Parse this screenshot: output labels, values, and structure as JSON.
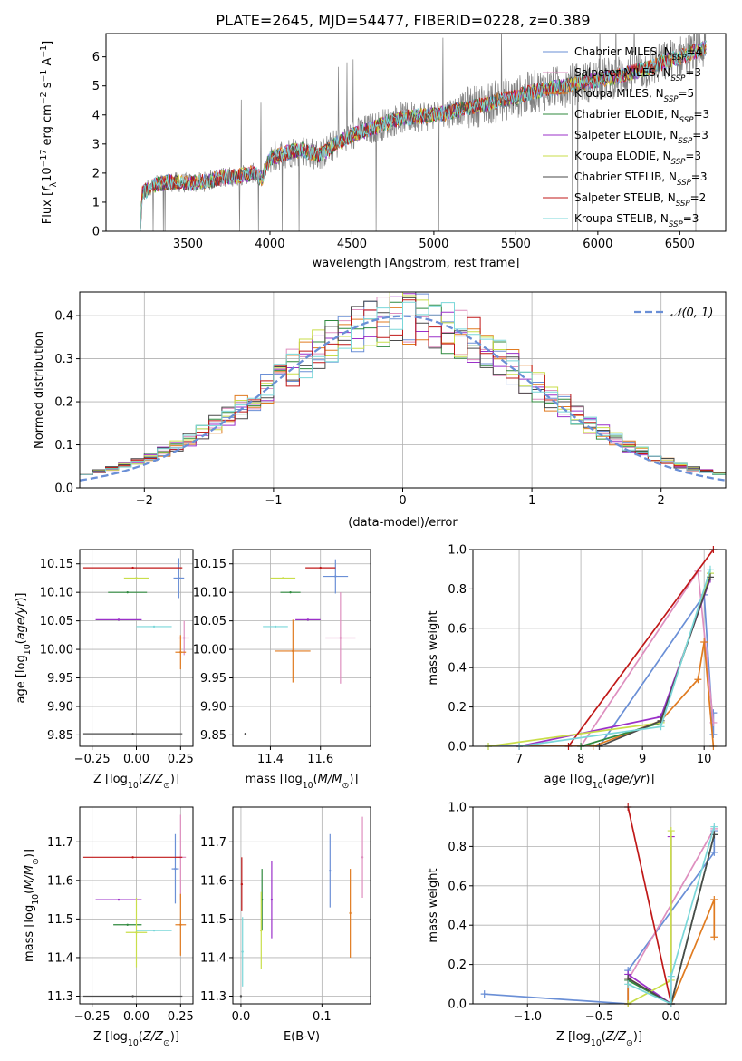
{
  "title": "PLATE=2645, MJD=54477, FIBERID=0228, z=0.389",
  "colors": {
    "Chabrier MILES": "#6a8fd6",
    "Salpeter MILES": "#de8fbf",
    "Kroupa MILES": "#e07b20",
    "Chabrier ELODIE": "#2f8a3e",
    "Salpeter ELODIE": "#9b30c9",
    "Kroupa ELODIE": "#c9de4a",
    "Chabrier STELIB": "#4a4a4a",
    "Salpeter STELIB": "#c01818",
    "Kroupa STELIB": "#7ad7d9",
    "data": "#808080",
    "normal": "#6a8fd6"
  },
  "chart_data": [
    {
      "id": "spectrum",
      "type": "line",
      "title": "PLATE=2645, MJD=54477, FIBERID=0228, z=0.389",
      "xlabel": "wavelength [Angstrom, rest frame]",
      "ylabel": "Flux [f_λ 10^-17 erg cm^-2 s^-1 A^-1]",
      "xlim": [
        3000,
        6780
      ],
      "ylim": [
        0,
        6.8
      ],
      "xticks": [
        3500,
        4000,
        4500,
        5000,
        5500,
        6000,
        6500
      ],
      "yticks": [
        0,
        1,
        2,
        3,
        4,
        5,
        6
      ],
      "legend": "right",
      "legend_entries": [
        {
          "label": "Chabrier MILES, N",
          "sub": "SSP",
          "tail": "=4",
          "model": "Chabrier MILES"
        },
        {
          "label": "Salpeter MILES, N",
          "sub": "SSP",
          "tail": "=3",
          "model": "Salpeter MILES"
        },
        {
          "label": "Kroupa MILES, N",
          "sub": "SSP",
          "tail": "=5",
          "model": "Kroupa MILES"
        },
        {
          "label": "Chabrier ELODIE, N",
          "sub": "SSP",
          "tail": "=3",
          "model": "Chabrier ELODIE"
        },
        {
          "label": "Salpeter ELODIE, N",
          "sub": "SSP",
          "tail": "=3",
          "model": "Salpeter ELODIE"
        },
        {
          "label": "Kroupa ELODIE, N",
          "sub": "SSP",
          "tail": "=3",
          "model": "Kroupa ELODIE"
        },
        {
          "label": "Chabrier STELIB, N",
          "sub": "SSP",
          "tail": "=3",
          "model": "Chabrier STELIB"
        },
        {
          "label": "Salpeter STELIB, N",
          "sub": "SSP",
          "tail": "=2",
          "model": "Salpeter STELIB"
        },
        {
          "label": "Kroupa STELIB, N",
          "sub": "SSP",
          "tail": "=3",
          "model": "Kroupa STELIB"
        }
      ],
      "model_shape": [
        [
          3210,
          0
        ],
        [
          3220,
          1.3
        ],
        [
          3300,
          1.6
        ],
        [
          3400,
          1.7
        ],
        [
          3500,
          1.65
        ],
        [
          3600,
          1.7
        ],
        [
          3700,
          1.85
        ],
        [
          3800,
          1.9
        ],
        [
          3900,
          2.0
        ],
        [
          3950,
          1.8
        ],
        [
          4000,
          2.5
        ],
        [
          4100,
          2.7
        ],
        [
          4200,
          2.8
        ],
        [
          4300,
          2.6
        ],
        [
          4400,
          3.0
        ],
        [
          4500,
          3.3
        ],
        [
          4600,
          3.5
        ],
        [
          4700,
          3.7
        ],
        [
          4800,
          3.9
        ],
        [
          4900,
          3.95
        ],
        [
          5000,
          4.0
        ],
        [
          5100,
          4.1
        ],
        [
          5200,
          4.25
        ],
        [
          5300,
          4.35
        ],
        [
          5400,
          4.5
        ],
        [
          5500,
          4.6
        ],
        [
          5600,
          4.8
        ],
        [
          5700,
          4.9
        ],
        [
          5800,
          5.0
        ],
        [
          5900,
          5.1
        ],
        [
          6000,
          5.2
        ],
        [
          6100,
          5.3
        ],
        [
          6200,
          5.45
        ],
        [
          6300,
          5.6
        ],
        [
          6400,
          5.8
        ],
        [
          6500,
          6.0
        ],
        [
          6600,
          6.2
        ],
        [
          6650,
          6.3
        ]
      ]
    },
    {
      "id": "residuals",
      "type": "line",
      "xlabel": "(data-model)/error",
      "ylabel": "Normed distribution",
      "xlim": [
        -2.5,
        2.5
      ],
      "ylim": [
        0,
        0.455
      ],
      "xticks": [
        -2,
        -1,
        0,
        1,
        2
      ],
      "yticks": [
        0.0,
        0.1,
        0.2,
        0.3,
        0.4
      ],
      "bin_edges_range": [
        -2.5,
        2.5
      ],
      "n_bins": 50,
      "normal_label": "𝒩(0, 1)",
      "legend": "top-right"
    },
    {
      "id": "age-Z",
      "type": "scatter",
      "xlabel": "Z [log10(Z/Z⊙)]",
      "ylabel": "age  [log10(age/yr)]",
      "xlim": [
        -0.32,
        0.32
      ],
      "ylim": [
        9.83,
        10.175
      ],
      "xticks": [
        -0.25,
        0.0,
        0.25
      ],
      "yticks": [
        9.85,
        9.9,
        9.95,
        10.0,
        10.05,
        10.1,
        10.15
      ],
      "points": [
        {
          "model": "Chabrier MILES",
          "x": 0.24,
          "y": 10.125,
          "xerr": 0.03,
          "yerr": 0.035
        },
        {
          "model": "Salpeter MILES",
          "x": 0.27,
          "y": 10.02,
          "xerr": 0.03,
          "yerr": 0.03
        },
        {
          "model": "Kroupa MILES",
          "x": 0.25,
          "y": 9.995,
          "xerr": 0.03,
          "yerr": 0.03
        },
        {
          "model": "Chabrier ELODIE",
          "x": -0.05,
          "y": 10.1,
          "xerr": 0.11,
          "yerr": 0.0
        },
        {
          "model": "Salpeter ELODIE",
          "x": -0.1,
          "y": 10.052,
          "xerr": 0.13,
          "yerr": 0.0
        },
        {
          "model": "Kroupa ELODIE",
          "x": 0.0,
          "y": 10.125,
          "xerr": 0.07,
          "yerr": 0.0
        },
        {
          "model": "Chabrier STELIB",
          "x": -0.02,
          "y": 9.852,
          "xerr": 0.28,
          "yerr": 0.0
        },
        {
          "model": "Salpeter STELIB",
          "x": -0.02,
          "y": 10.143,
          "xerr": 0.28,
          "yerr": 0.0
        },
        {
          "model": "Kroupa STELIB",
          "x": 0.1,
          "y": 10.04,
          "xerr": 0.1,
          "yerr": 0.0
        }
      ]
    },
    {
      "id": "age-mass",
      "type": "scatter",
      "xlabel": "mass [log10(M/M⊙)]",
      "xlim": [
        11.25,
        11.8
      ],
      "ylim": [
        9.83,
        10.175
      ],
      "xticks": [
        11.4,
        11.6
      ],
      "yticks": [
        9.85,
        9.9,
        9.95,
        10.0,
        10.05,
        10.1,
        10.15
      ],
      "points": [
        {
          "model": "Chabrier MILES",
          "x": 11.66,
          "y": 10.128,
          "xerr": 0.05,
          "yerr": 0.03
        },
        {
          "model": "Salpeter MILES",
          "x": 11.68,
          "y": 10.02,
          "xerr": 0.06,
          "yerr": 0.08
        },
        {
          "model": "Kroupa MILES",
          "x": 11.49,
          "y": 9.997,
          "xerr": 0.07,
          "yerr": 0.055
        },
        {
          "model": "Chabrier ELODIE",
          "x": 11.48,
          "y": 10.1,
          "xerr": 0.04,
          "yerr": 0.0
        },
        {
          "model": "Salpeter ELODIE",
          "x": 11.55,
          "y": 10.052,
          "xerr": 0.05,
          "yerr": 0.0
        },
        {
          "model": "Kroupa ELODIE",
          "x": 11.45,
          "y": 10.125,
          "xerr": 0.05,
          "yerr": 0.0
        },
        {
          "model": "Chabrier STELIB",
          "x": 11.3,
          "y": 9.852,
          "xerr": 0.0,
          "yerr": 0.0
        },
        {
          "model": "Salpeter STELIB",
          "x": 11.6,
          "y": 10.143,
          "xerr": 0.06,
          "yerr": 0.0
        },
        {
          "model": "Kroupa STELIB",
          "x": 11.42,
          "y": 10.04,
          "xerr": 0.05,
          "yerr": 0.0
        }
      ]
    },
    {
      "id": "weight-age",
      "type": "line",
      "xlabel": "age  [log10(age/yr)]",
      "ylabel": "mass weight",
      "xlim": [
        6.25,
        10.35
      ],
      "ylim": [
        0,
        1.0
      ],
      "xticks": [
        7,
        8,
        9,
        10
      ],
      "yticks": [
        0.0,
        0.2,
        0.4,
        0.6,
        0.8,
        1.0
      ],
      "series": [
        {
          "model": "Chabrier MILES",
          "points": [
            [
              6.5,
              0.0
            ],
            [
              8.3,
              0.0
            ],
            [
              10.0,
              0.77
            ],
            [
              10.15,
              0.06
            ],
            [
              10.15,
              0.17
            ]
          ]
        },
        {
          "model": "Salpeter MILES",
          "points": [
            [
              7.0,
              0.0
            ],
            [
              8.0,
              0.0
            ],
            [
              9.9,
              0.89
            ],
            [
              10.15,
              0.12
            ]
          ]
        },
        {
          "model": "Kroupa MILES",
          "points": [
            [
              7.0,
              0.0
            ],
            [
              8.2,
              0.0
            ],
            [
              9.3,
              0.13
            ],
            [
              9.9,
              0.34
            ],
            [
              10.0,
              0.53
            ],
            [
              10.15,
              0.0
            ]
          ]
        },
        {
          "model": "Chabrier ELODIE",
          "points": [
            [
              8.0,
              0.0
            ],
            [
              9.3,
              0.12
            ],
            [
              10.1,
              0.88
            ]
          ]
        },
        {
          "model": "Salpeter ELODIE",
          "points": [
            [
              7.0,
              0.0
            ],
            [
              9.3,
              0.15
            ],
            [
              10.1,
              0.85
            ]
          ]
        },
        {
          "model": "Kroupa ELODIE",
          "points": [
            [
              6.5,
              0.0
            ],
            [
              9.3,
              0.12
            ],
            [
              10.1,
              0.88
            ]
          ]
        },
        {
          "model": "Chabrier STELIB",
          "points": [
            [
              8.3,
              0.0
            ],
            [
              9.3,
              0.13
            ],
            [
              10.1,
              0.86
            ]
          ]
        },
        {
          "model": "Salpeter STELIB",
          "points": [
            [
              7.8,
              0.0
            ],
            [
              10.15,
              1.0
            ]
          ]
        },
        {
          "model": "Kroupa STELIB",
          "points": [
            [
              7.0,
              0.0
            ],
            [
              9.3,
              0.1
            ],
            [
              10.1,
              0.9
            ]
          ]
        }
      ]
    },
    {
      "id": "mass-Z",
      "type": "scatter",
      "xlabel": "Z [log10(Z/Z⊙)]",
      "ylabel": "mass [log10(M/M⊙)]",
      "xlim": [
        -0.32,
        0.32
      ],
      "ylim": [
        11.28,
        11.79
      ],
      "xticks": [
        -0.25,
        0.0,
        0.25
      ],
      "yticks": [
        11.3,
        11.4,
        11.5,
        11.6,
        11.7
      ],
      "points": [
        {
          "model": "Chabrier MILES",
          "x": 0.22,
          "y": 11.63,
          "xerr": 0.02,
          "yerr": 0.09
        },
        {
          "model": "Salpeter MILES",
          "x": 0.25,
          "y": 11.66,
          "xerr": 0.03,
          "yerr": 0.11
        },
        {
          "model": "Kroupa MILES",
          "x": 0.25,
          "y": 11.485,
          "xerr": 0.03,
          "yerr": 0.08
        },
        {
          "model": "Chabrier ELODIE",
          "x": -0.05,
          "y": 11.485,
          "xerr": 0.08,
          "yerr": 0.0
        },
        {
          "model": "Salpeter ELODIE",
          "x": -0.1,
          "y": 11.55,
          "xerr": 0.13,
          "yerr": 0.0
        },
        {
          "model": "Kroupa ELODIE",
          "x": 0.0,
          "y": 11.465,
          "xerr": 0.06,
          "yerr": 0.09
        },
        {
          "model": "Chabrier STELIB",
          "x": -0.02,
          "y": 11.3,
          "xerr": 0.28,
          "yerr": 0.0
        },
        {
          "model": "Salpeter STELIB",
          "x": -0.02,
          "y": 11.66,
          "xerr": 0.28,
          "yerr": 0.0
        },
        {
          "model": "Kroupa STELIB",
          "x": 0.1,
          "y": 11.47,
          "xerr": 0.1,
          "yerr": 0.0
        }
      ]
    },
    {
      "id": "mass-ebv",
      "type": "scatter",
      "xlabel": "E(B-V)",
      "xlim": [
        -0.01,
        0.16
      ],
      "ylim": [
        11.28,
        11.79
      ],
      "xticks": [
        0.0,
        0.1
      ],
      "yticks": [
        11.3,
        11.4,
        11.5,
        11.6,
        11.7
      ],
      "points": [
        {
          "model": "Chabrier MILES",
          "x": 0.11,
          "y": 11.625,
          "yerr": 0.095
        },
        {
          "model": "Salpeter MILES",
          "x": 0.15,
          "y": 11.66,
          "yerr": 0.105
        },
        {
          "model": "Kroupa MILES",
          "x": 0.135,
          "y": 11.515,
          "yerr": 0.115
        },
        {
          "model": "Chabrier ELODIE",
          "x": 0.026,
          "y": 11.55,
          "yerr": 0.08
        },
        {
          "model": "Salpeter ELODIE",
          "x": 0.038,
          "y": 11.55,
          "yerr": 0.1
        },
        {
          "model": "Kroupa ELODIE",
          "x": 0.025,
          "y": 11.47,
          "yerr": 0.1
        },
        {
          "model": "Chabrier STELIB",
          "x": 0.0,
          "y": 11.3,
          "yerr": 0.0
        },
        {
          "model": "Salpeter STELIB",
          "x": 0.001,
          "y": 11.59,
          "yerr": 0.07
        },
        {
          "model": "Kroupa STELIB",
          "x": 0.002,
          "y": 11.415,
          "yerr": 0.09
        }
      ]
    },
    {
      "id": "weight-Z",
      "type": "line",
      "xlabel": "Z [log10(Z/Z⊙)]",
      "ylabel": "mass weight",
      "xlim": [
        -1.38,
        0.38
      ],
      "ylim": [
        0,
        1.0
      ],
      "xticks": [
        -1.0,
        -0.5,
        0.0
      ],
      "yticks": [
        0.0,
        0.2,
        0.4,
        0.6,
        0.8,
        1.0
      ],
      "series": [
        {
          "model": "Chabrier MILES",
          "points": [
            [
              -1.3,
              0.05
            ],
            [
              -0.3,
              0.0
            ],
            [
              -0.3,
              0.17
            ],
            [
              0.3,
              0.77
            ],
            [
              0.3,
              0.88
            ]
          ]
        },
        {
          "model": "Salpeter MILES",
          "points": [
            [
              -0.3,
              0.0
            ],
            [
              -0.3,
              0.12
            ],
            [
              0.3,
              0.89
            ]
          ]
        },
        {
          "model": "Kroupa MILES",
          "points": [
            [
              -0.3,
              0.0
            ],
            [
              -0.3,
              0.13
            ],
            [
              0.0,
              0.0
            ],
            [
              0.3,
              0.53
            ],
            [
              0.3,
              0.34
            ]
          ]
        },
        {
          "model": "Chabrier ELODIE",
          "points": [
            [
              -0.3,
              0.12
            ],
            [
              0.0,
              0.0
            ],
            [
              0.3,
              0.86
            ]
          ]
        },
        {
          "model": "Salpeter ELODIE",
          "points": [
            [
              -0.3,
              0.15
            ],
            [
              0.0,
              0.0
            ],
            [
              0.0,
              0.85
            ]
          ]
        },
        {
          "model": "Kroupa ELODIE",
          "points": [
            [
              -0.3,
              0.0
            ],
            [
              0.0,
              0.12
            ],
            [
              0.0,
              0.88
            ]
          ]
        },
        {
          "model": "Chabrier STELIB",
          "points": [
            [
              -0.3,
              0.13
            ],
            [
              0.0,
              0.0
            ],
            [
              0.3,
              0.86
            ]
          ]
        },
        {
          "model": "Salpeter STELIB",
          "points": [
            [
              -0.3,
              1.0
            ],
            [
              0.0,
              0.0
            ]
          ]
        },
        {
          "model": "Kroupa STELIB",
          "points": [
            [
              -0.3,
              0.1
            ],
            [
              0.0,
              0.0
            ],
            [
              0.0,
              0.14
            ],
            [
              0.3,
              0.9
            ]
          ]
        }
      ]
    }
  ]
}
